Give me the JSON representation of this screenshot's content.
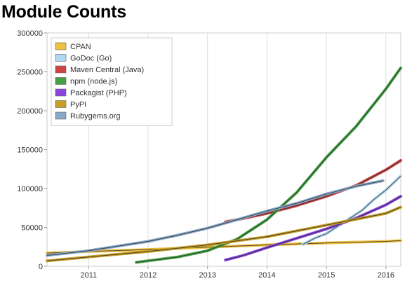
{
  "chart_data": {
    "type": "line",
    "title": "Module Counts",
    "xlabel": "",
    "ylabel": "",
    "xlim": [
      2010.3,
      2016.25
    ],
    "ylim": [
      0,
      300000
    ],
    "y_ticks": [
      0,
      50000,
      100000,
      150000,
      200000,
      250000,
      300000
    ],
    "y_tick_labels": [
      "0",
      "50000",
      "100000",
      "150000",
      "200000",
      "250000",
      "300000"
    ],
    "x_ticks": [
      2011,
      2012,
      2013,
      2014,
      2015,
      2016
    ],
    "x_tick_labels": [
      "2011",
      "2012",
      "2013",
      "2014",
      "2015",
      "2016"
    ],
    "grid": "vertical",
    "legend_position": "top-left",
    "series": [
      {
        "name": "CPAN",
        "color": "#f0c040",
        "x": [
          2010.3,
          2011.0,
          2012.0,
          2013.0,
          2014.0,
          2015.0,
          2016.0,
          2016.25
        ],
        "y": [
          17000,
          19000,
          21500,
          24500,
          27500,
          30000,
          32000,
          33000
        ]
      },
      {
        "name": "GoDoc (Go)",
        "color": "#b0d8f0",
        "x": [
          2014.6,
          2014.8,
          2015.0,
          2015.2,
          2015.4,
          2015.6,
          2015.8,
          2016.0,
          2016.25
        ],
        "y": [
          28000,
          36000,
          42000,
          52000,
          62000,
          72000,
          86000,
          98000,
          116000
        ]
      },
      {
        "name": "Maven Central (Java)",
        "color": "#cc4444",
        "x": [
          2013.3,
          2013.7,
          2014.0,
          2014.5,
          2015.0,
          2015.5,
          2016.0,
          2016.25
        ],
        "y": [
          57000,
          63000,
          68000,
          78000,
          90000,
          104000,
          124000,
          136000
        ]
      },
      {
        "name": "npm (node.js)",
        "color": "#44a044",
        "x": [
          2011.8,
          2012.0,
          2012.5,
          2013.0,
          2013.5,
          2014.0,
          2014.5,
          2015.0,
          2015.5,
          2016.0,
          2016.25
        ],
        "y": [
          5000,
          7000,
          12000,
          20000,
          35000,
          60000,
          95000,
          140000,
          180000,
          228000,
          255000
        ]
      },
      {
        "name": "Packagist (PHP)",
        "color": "#8844dd",
        "x": [
          2013.3,
          2013.6,
          2014.0,
          2014.5,
          2015.0,
          2015.5,
          2016.0,
          2016.25
        ],
        "y": [
          8000,
          14000,
          24000,
          36000,
          48000,
          62000,
          79000,
          90000
        ]
      },
      {
        "name": "PyPI",
        "color": "#c8a028",
        "x": [
          2010.3,
          2011.0,
          2012.0,
          2013.0,
          2014.0,
          2015.0,
          2016.0,
          2016.25
        ],
        "y": [
          7000,
          12000,
          19000,
          27500,
          38000,
          53000,
          68000,
          76000
        ]
      },
      {
        "name": "Rubygems.org",
        "color": "#88a8c8",
        "x": [
          2010.3,
          2011.0,
          2011.5,
          2012.0,
          2012.5,
          2013.0,
          2013.5,
          2014.0,
          2014.5,
          2015.0,
          2015.5,
          2015.95
        ],
        "y": [
          14000,
          20000,
          26000,
          32000,
          40000,
          49000,
          60000,
          71000,
          81000,
          93000,
          103000,
          110000
        ]
      }
    ]
  }
}
